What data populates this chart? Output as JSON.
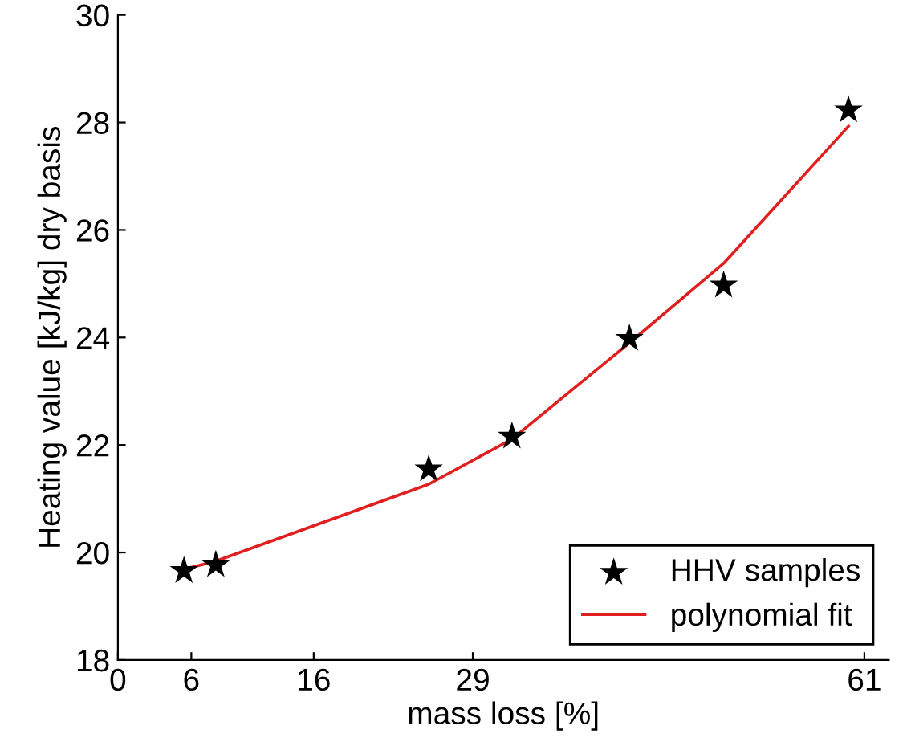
{
  "chart_data": {
    "type": "scatter",
    "xlabel": "mass loss [%]",
    "ylabel": "Heating value [kJ/kg] dry basis",
    "xlim": [
      0,
      63
    ],
    "xticks": [
      0,
      6,
      16,
      29,
      61
    ],
    "ylim": [
      18,
      30
    ],
    "yticks": [
      18,
      20,
      22,
      24,
      26,
      28,
      30
    ],
    "grid": false,
    "legend": "bottom right",
    "series": [
      {
        "name": "HHV samples",
        "marker": "star",
        "color": "#000000",
        "x": [
          5.4,
          8.0,
          25.4,
          32.2,
          41.8,
          49.5,
          59.7
        ],
        "values": [
          19.66,
          19.77,
          21.55,
          22.16,
          23.98,
          24.97,
          28.23
        ]
      },
      {
        "name": "polynomial fit",
        "type": "line",
        "marker": "none",
        "line_style": "solid",
        "color": "#e02020",
        "x": [
          5.4,
          8.0,
          25.4,
          32.2,
          41.8,
          49.5,
          59.7
        ],
        "values": [
          19.69,
          19.84,
          21.27,
          22.11,
          23.9,
          25.38,
          27.93
        ]
      }
    ]
  }
}
